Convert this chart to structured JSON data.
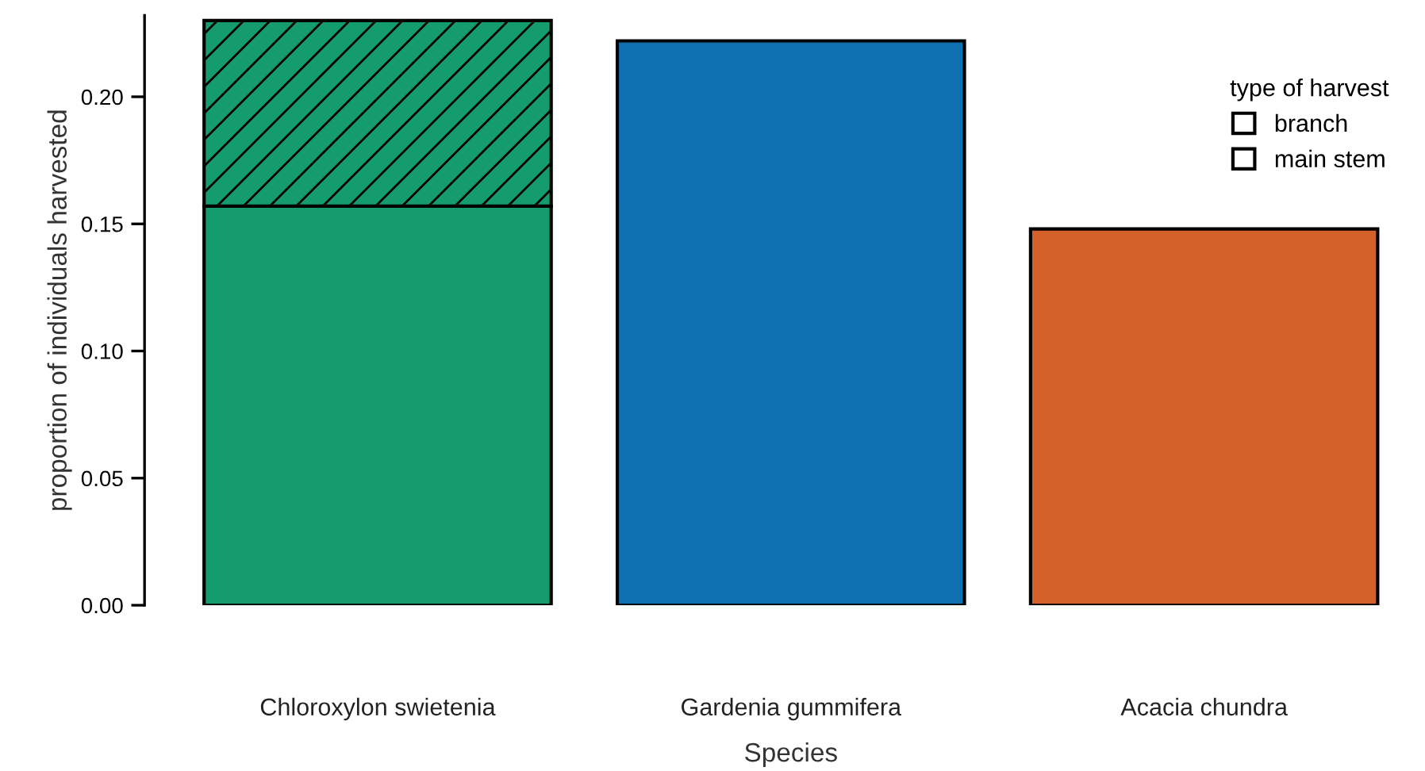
{
  "chart_data": {
    "type": "bar",
    "stacked": true,
    "xlabel": "Species",
    "ylabel": "proportion of individuals harvested",
    "legend_title": "type of harvest",
    "categories": [
      "Chloroxylon swietenia",
      "Gardenia gummifera",
      "Acacia chundra"
    ],
    "series": [
      {
        "name": "branch",
        "colors": [
          "#149c6e",
          "#0f6fb0",
          "#d4602a"
        ],
        "values": [
          0.157,
          0.222,
          0.148
        ]
      },
      {
        "name": "main stem",
        "colors": [
          "#149c6e",
          "#0f6fb0",
          "#d4602a"
        ],
        "values": [
          0.073,
          0,
          0
        ]
      }
    ],
    "ylim": [
      0,
      0.232
    ],
    "yticks": [
      {
        "value": 0,
        "label": "0.00"
      },
      {
        "value": 0.05,
        "label": "0.05"
      },
      {
        "value": 0.1,
        "label": "0.10"
      },
      {
        "value": 0.15,
        "label": "0.15"
      },
      {
        "value": 0.2,
        "label": "0.20"
      }
    ],
    "legend": "top right",
    "grid": false
  }
}
